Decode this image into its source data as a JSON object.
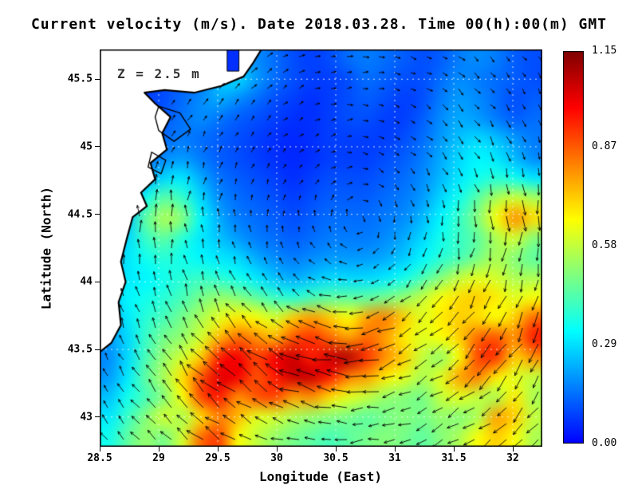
{
  "figure": {
    "title": "Current velocity (m/s). Date 2018.03.28. Time 00(h):00(m) GMT"
  },
  "chart_data": {
    "type": "heatmap",
    "title": "Current velocity (m/s). Date 2018.03.28. Time 00(h):00(m) GMT",
    "xlabel": "Longitude (East)",
    "ylabel": "Latitude (North)",
    "xlim": [
      28.5,
      32.25
    ],
    "ylim": [
      42.78,
      45.72
    ],
    "grid": true,
    "annotation": {
      "text": "Z = 2.5 m",
      "lon": 28.68,
      "lat": 45.55
    },
    "x_ticks": [
      {
        "value": 28.5,
        "label": "28.5"
      },
      {
        "value": 29.0,
        "label": "29"
      },
      {
        "value": 29.5,
        "label": "29.5"
      },
      {
        "value": 30.0,
        "label": "30"
      },
      {
        "value": 30.5,
        "label": "30.5"
      },
      {
        "value": 31.0,
        "label": "31"
      },
      {
        "value": 31.5,
        "label": "31.5"
      },
      {
        "value": 32.0,
        "label": "32"
      }
    ],
    "y_ticks": [
      {
        "value": 43.0,
        "label": "43"
      },
      {
        "value": 43.5,
        "label": "43.5"
      },
      {
        "value": 44.0,
        "label": "44"
      },
      {
        "value": 44.5,
        "label": "44.5"
      },
      {
        "value": 45.0,
        "label": "45"
      },
      {
        "value": 45.5,
        "label": "45.5"
      }
    ],
    "colorbar": {
      "min": 0.0,
      "max": 1.15,
      "colormap": "jet",
      "units": "m/s",
      "ticks": [
        {
          "value": 1.15,
          "label": "1.15"
        },
        {
          "value": 0.87,
          "label": "0.87"
        },
        {
          "value": 0.58,
          "label": "0.58"
        },
        {
          "value": 0.29,
          "label": "0.29"
        },
        {
          "value": 0.0,
          "label": "0.00"
        }
      ]
    },
    "speed_grid": {
      "units": "m/s",
      "extent_note": "rows top-to-bottom span ylim, cols left-to-right span xlim",
      "values": [
        [
          0.12,
          0.1,
          0.1,
          0.08,
          0.1,
          0.12,
          0.18,
          0.22,
          0.18,
          0.14,
          0.1,
          0.08,
          0.1,
          0.14,
          0.16,
          0.14,
          0.12,
          0.1,
          0.12,
          0.16,
          0.18,
          0.16,
          0.12,
          0.1
        ],
        [
          0.1,
          0.1,
          0.08,
          0.1,
          0.12,
          0.15,
          0.25,
          0.28,
          0.2,
          0.14,
          0.1,
          0.08,
          0.08,
          0.1,
          0.14,
          0.12,
          0.1,
          0.1,
          0.14,
          0.18,
          0.16,
          0.14,
          0.12,
          0.1
        ],
        [
          0.1,
          0.08,
          0.08,
          0.1,
          0.14,
          0.18,
          0.22,
          0.18,
          0.14,
          0.1,
          0.08,
          0.06,
          0.08,
          0.1,
          0.12,
          0.1,
          0.08,
          0.1,
          0.16,
          0.2,
          0.18,
          0.14,
          0.1,
          0.12
        ],
        [
          0.08,
          0.08,
          0.1,
          0.12,
          0.15,
          0.18,
          0.15,
          0.12,
          0.1,
          0.08,
          0.06,
          0.06,
          0.08,
          0.1,
          0.1,
          0.08,
          0.08,
          0.12,
          0.18,
          0.22,
          0.2,
          0.16,
          0.12,
          0.14
        ],
        [
          0.08,
          0.1,
          0.12,
          0.14,
          0.16,
          0.14,
          0.12,
          0.1,
          0.08,
          0.06,
          0.05,
          0.06,
          0.08,
          0.08,
          0.08,
          0.08,
          0.1,
          0.14,
          0.2,
          0.25,
          0.28,
          0.25,
          0.2,
          0.16
        ],
        [
          0.1,
          0.12,
          0.15,
          0.18,
          0.2,
          0.16,
          0.12,
          0.1,
          0.08,
          0.06,
          0.05,
          0.06,
          0.08,
          0.08,
          0.08,
          0.1,
          0.12,
          0.16,
          0.22,
          0.28,
          0.32,
          0.3,
          0.24,
          0.18
        ],
        [
          0.12,
          0.15,
          0.22,
          0.28,
          0.3,
          0.22,
          0.15,
          0.12,
          0.1,
          0.08,
          0.06,
          0.08,
          0.1,
          0.1,
          0.1,
          0.12,
          0.14,
          0.18,
          0.24,
          0.3,
          0.35,
          0.38,
          0.35,
          0.3
        ],
        [
          0.15,
          0.2,
          0.35,
          0.45,
          0.4,
          0.28,
          0.18,
          0.14,
          0.12,
          0.1,
          0.08,
          0.1,
          0.12,
          0.12,
          0.12,
          0.14,
          0.16,
          0.2,
          0.28,
          0.35,
          0.45,
          0.55,
          0.6,
          0.55
        ],
        [
          0.18,
          0.25,
          0.45,
          0.55,
          0.5,
          0.32,
          0.22,
          0.16,
          0.14,
          0.12,
          0.1,
          0.12,
          0.14,
          0.14,
          0.14,
          0.16,
          0.18,
          0.24,
          0.32,
          0.4,
          0.5,
          0.65,
          0.8,
          0.7
        ],
        [
          0.2,
          0.28,
          0.4,
          0.45,
          0.38,
          0.3,
          0.25,
          0.2,
          0.16,
          0.14,
          0.12,
          0.14,
          0.16,
          0.16,
          0.16,
          0.18,
          0.22,
          0.28,
          0.35,
          0.4,
          0.45,
          0.55,
          0.6,
          0.5
        ],
        [
          0.22,
          0.3,
          0.35,
          0.38,
          0.35,
          0.32,
          0.3,
          0.28,
          0.22,
          0.18,
          0.16,
          0.18,
          0.2,
          0.2,
          0.2,
          0.22,
          0.26,
          0.32,
          0.38,
          0.42,
          0.48,
          0.55,
          0.5,
          0.45
        ],
        [
          0.25,
          0.3,
          0.32,
          0.35,
          0.38,
          0.4,
          0.38,
          0.35,
          0.3,
          0.25,
          0.22,
          0.25,
          0.28,
          0.28,
          0.28,
          0.3,
          0.35,
          0.42,
          0.5,
          0.58,
          0.62,
          0.6,
          0.55,
          0.55
        ],
        [
          0.25,
          0.32,
          0.35,
          0.38,
          0.42,
          0.48,
          0.52,
          0.5,
          0.45,
          0.4,
          0.38,
          0.42,
          0.45,
          0.45,
          0.45,
          0.48,
          0.52,
          0.58,
          0.65,
          0.7,
          0.72,
          0.68,
          0.62,
          0.65
        ],
        [
          0.22,
          0.3,
          0.38,
          0.42,
          0.48,
          0.55,
          0.62,
          0.68,
          0.65,
          0.6,
          0.72,
          0.78,
          0.72,
          0.65,
          0.78,
          0.82,
          0.72,
          0.62,
          0.68,
          0.72,
          0.7,
          0.65,
          0.72,
          0.85
        ],
        [
          0.2,
          0.28,
          0.4,
          0.48,
          0.52,
          0.6,
          0.75,
          0.85,
          0.8,
          0.75,
          0.88,
          0.92,
          0.85,
          0.78,
          0.85,
          0.78,
          0.68,
          0.62,
          0.65,
          0.72,
          0.85,
          0.88,
          0.8,
          0.95
        ],
        [
          0.18,
          0.28,
          0.42,
          0.52,
          0.6,
          0.72,
          0.95,
          1.0,
          0.9,
          1.0,
          1.05,
          0.95,
          1.05,
          1.08,
          0.92,
          0.8,
          0.72,
          0.58,
          0.52,
          0.65,
          0.9,
          0.92,
          0.72,
          0.8
        ],
        [
          0.2,
          0.3,
          0.45,
          0.55,
          0.7,
          0.88,
          1.02,
          1.0,
          0.88,
          0.95,
          1.05,
          1.05,
          0.95,
          0.82,
          0.78,
          0.68,
          0.62,
          0.55,
          0.62,
          0.78,
          0.82,
          0.68,
          0.62,
          0.58
        ],
        [
          0.25,
          0.35,
          0.42,
          0.5,
          0.65,
          0.9,
          0.95,
          0.8,
          0.88,
          0.9,
          0.78,
          0.8,
          0.7,
          0.62,
          0.58,
          0.52,
          0.5,
          0.48,
          0.58,
          0.62,
          0.58,
          0.55,
          0.68,
          0.55
        ],
        [
          0.3,
          0.4,
          0.5,
          0.6,
          0.55,
          0.7,
          0.82,
          0.75,
          0.62,
          0.6,
          0.55,
          0.52,
          0.5,
          0.48,
          0.45,
          0.48,
          0.5,
          0.48,
          0.52,
          0.5,
          0.55,
          0.78,
          0.72,
          0.58
        ],
        [
          0.35,
          0.45,
          0.52,
          0.48,
          0.6,
          0.85,
          0.9,
          0.65,
          0.58,
          0.52,
          0.48,
          0.45,
          0.42,
          0.45,
          0.48,
          0.5,
          0.48,
          0.45,
          0.5,
          0.55,
          0.65,
          0.72,
          0.65,
          0.55
        ]
      ]
    },
    "current_dirs_deg": {
      "note": "flow direction toward, degrees CCW from east; cyclonic gyre",
      "values": [
        [
          58,
          54,
          48,
          40,
          31,
          18,
          4,
          -11,
          -24,
          -35,
          -44,
          -51
        ],
        [
          65,
          61,
          56,
          49,
          39,
          24,
          6,
          -14,
          -31,
          -44,
          -52,
          -59
        ],
        [
          73,
          70,
          66,
          60,
          50,
          33,
          8,
          -21,
          -42,
          -55,
          -63,
          -68
        ],
        [
          82,
          80,
          78,
          74,
          68,
          54,
          17,
          -39,
          -62,
          -71,
          -76,
          -79
        ],
        [
          91,
          91,
          91,
          91,
          92,
          93,
          103,
          -95,
          -92,
          -92,
          -93,
          -93
        ],
        [
          99,
          101,
          103,
          107,
          114,
          129,
          165,
          -144,
          -121,
          -110,
          -105,
          -102
        ],
        [
          108,
          111,
          115,
          122,
          131,
          148,
          172,
          -160,
          -139,
          -126,
          -118,
          -113
        ],
        [
          115,
          120,
          125,
          132,
          143,
          157,
          175,
          -166,
          -150,
          -138,
          -129,
          -122
        ],
        [
          122,
          127,
          133,
          140,
          150,
          162,
          176,
          -169,
          -156,
          -145,
          -137,
          -130
        ],
        [
          128,
          133,
          139,
          147,
          155,
          166,
          177,
          -172,
          -161,
          -151,
          -143,
          -136
        ]
      ]
    },
    "coastline": [
      [
        29.87,
        45.72
      ],
      [
        29.8,
        45.62
      ],
      [
        29.72,
        45.52
      ],
      [
        29.53,
        45.45
      ],
      [
        29.3,
        45.4
      ],
      [
        29.05,
        45.42
      ],
      [
        28.88,
        45.4
      ],
      [
        28.97,
        45.32
      ],
      [
        29.1,
        45.22
      ],
      [
        29.03,
        45.1
      ],
      [
        29.07,
        44.98
      ],
      [
        28.93,
        44.88
      ],
      [
        28.97,
        44.76
      ],
      [
        28.85,
        44.66
      ],
      [
        28.9,
        44.56
      ],
      [
        28.78,
        44.48
      ],
      [
        28.73,
        44.32
      ],
      [
        28.68,
        44.15
      ],
      [
        28.72,
        44.0
      ],
      [
        28.66,
        43.85
      ],
      [
        28.68,
        43.68
      ],
      [
        28.6,
        43.55
      ],
      [
        28.5,
        43.48
      ]
    ],
    "lakes": [
      [
        [
          29.0,
          45.3
        ],
        [
          29.18,
          45.25
        ],
        [
          29.27,
          45.13
        ],
        [
          29.13,
          45.04
        ],
        [
          29.0,
          45.12
        ],
        [
          28.97,
          45.22
        ]
      ],
      [
        [
          28.94,
          44.96
        ],
        [
          29.06,
          44.9
        ],
        [
          29.02,
          44.8
        ],
        [
          28.91,
          44.85
        ]
      ]
    ],
    "river_inlet": {
      "lon": [
        29.58,
        29.68
      ],
      "lat": [
        45.56,
        45.72
      ]
    }
  },
  "colors": {
    "background": "#ffffff",
    "land": "#ffffff",
    "coastline": "#000000",
    "arrow": "#000000",
    "gridline": "#ffffff"
  }
}
